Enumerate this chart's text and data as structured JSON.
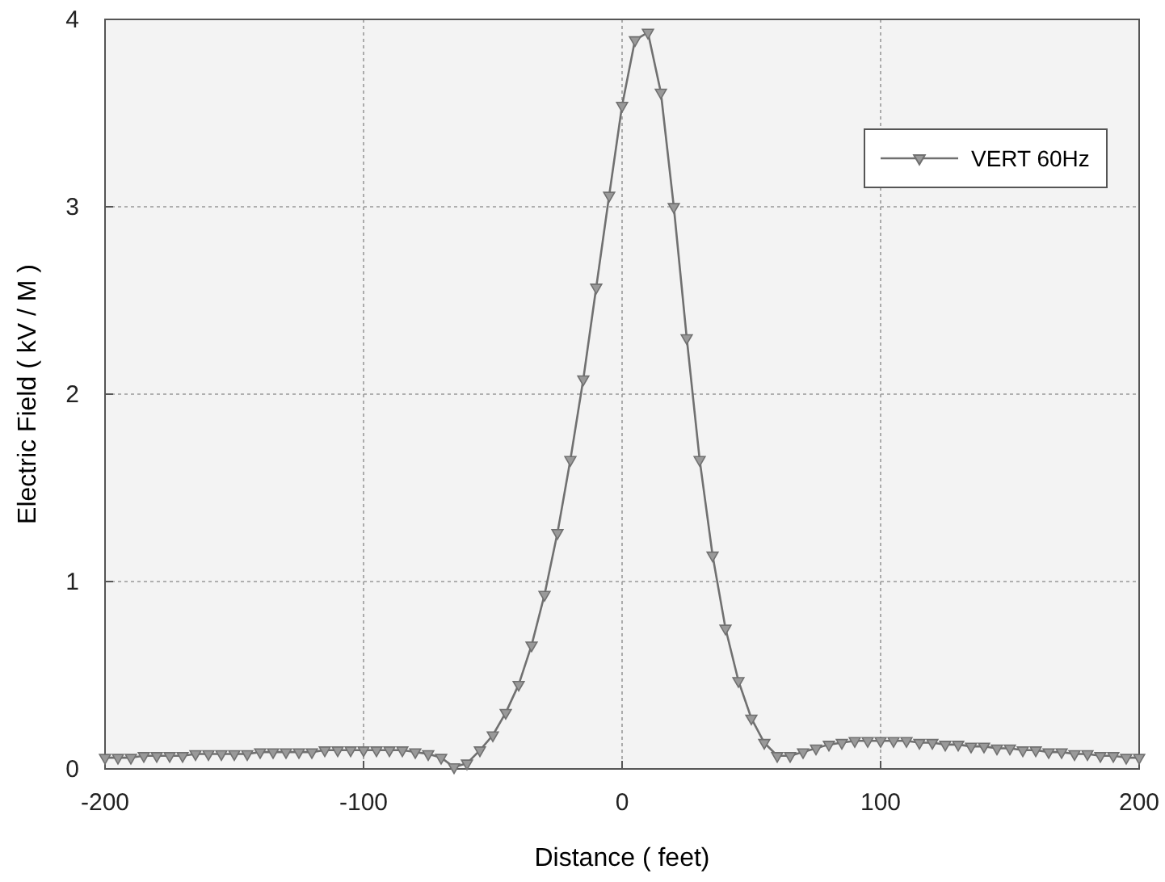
{
  "chart_data": {
    "type": "line",
    "xlabel": "Distance ( feet)",
    "ylabel": "Electric Field ( kV / M )",
    "x": [
      -200,
      -195,
      -190,
      -185,
      -180,
      -175,
      -170,
      -165,
      -160,
      -155,
      -150,
      -145,
      -140,
      -135,
      -130,
      -125,
      -120,
      -115,
      -110,
      -105,
      -100,
      -95,
      -90,
      -85,
      -80,
      -75,
      -70,
      -65,
      -60,
      -55,
      -50,
      -45,
      -40,
      -35,
      -30,
      -25,
      -20,
      -15,
      -10,
      -5,
      0,
      5,
      10,
      15,
      20,
      25,
      30,
      35,
      40,
      45,
      50,
      55,
      60,
      65,
      70,
      75,
      80,
      85,
      90,
      95,
      100,
      105,
      110,
      115,
      120,
      125,
      130,
      135,
      140,
      145,
      150,
      155,
      160,
      165,
      170,
      175,
      180,
      185,
      190,
      195,
      200
    ],
    "series": [
      {
        "name": "VERT 60Hz",
        "color": "#707070",
        "values": [
          0.06,
          0.06,
          0.06,
          0.07,
          0.07,
          0.07,
          0.07,
          0.08,
          0.08,
          0.08,
          0.08,
          0.08,
          0.09,
          0.09,
          0.09,
          0.09,
          0.09,
          0.1,
          0.1,
          0.1,
          0.1,
          0.1,
          0.1,
          0.1,
          0.09,
          0.08,
          0.06,
          0.01,
          0.03,
          0.1,
          0.18,
          0.3,
          0.45,
          0.66,
          0.93,
          1.26,
          1.65,
          2.08,
          2.57,
          3.06,
          3.54,
          3.89,
          3.93,
          3.61,
          3.0,
          2.3,
          1.65,
          1.14,
          0.75,
          0.47,
          0.27,
          0.14,
          0.07,
          0.07,
          0.09,
          0.11,
          0.13,
          0.14,
          0.15,
          0.15,
          0.15,
          0.15,
          0.15,
          0.14,
          0.14,
          0.13,
          0.13,
          0.12,
          0.12,
          0.11,
          0.11,
          0.1,
          0.1,
          0.09,
          0.09,
          0.08,
          0.08,
          0.07,
          0.07,
          0.06,
          0.06
        ]
      }
    ],
    "xlim": [
      -200,
      200
    ],
    "ylim": [
      0,
      4
    ],
    "xticks": [
      -200,
      -100,
      0,
      100,
      200
    ],
    "yticks": [
      0,
      1,
      2,
      3,
      4
    ],
    "grid": true,
    "legend": "top right",
    "marker": "triangle",
    "line_style": "solid"
  }
}
